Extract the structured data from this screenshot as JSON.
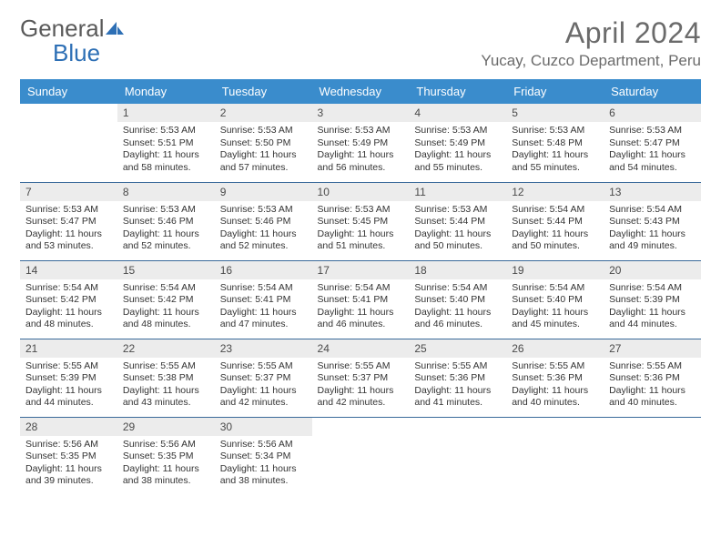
{
  "logo": {
    "main": "General",
    "accent": "Blue"
  },
  "title": "April 2024",
  "location": "Yucay, Cuzco Department, Peru",
  "colors": {
    "header_bg": "#3a8ccc",
    "header_fg": "#ffffff",
    "daynum_bg": "#ececec",
    "row_border": "#3a6a9a",
    "title_color": "#6b6b6b",
    "logo_gray": "#5a5a5a",
    "logo_blue": "#2d6fb5"
  },
  "weekdays": [
    "Sunday",
    "Monday",
    "Tuesday",
    "Wednesday",
    "Thursday",
    "Friday",
    "Saturday"
  ],
  "weeks": [
    [
      null,
      {
        "n": "1",
        "sr": "5:53 AM",
        "ss": "5:51 PM",
        "dl": "11 hours and 58 minutes."
      },
      {
        "n": "2",
        "sr": "5:53 AM",
        "ss": "5:50 PM",
        "dl": "11 hours and 57 minutes."
      },
      {
        "n": "3",
        "sr": "5:53 AM",
        "ss": "5:49 PM",
        "dl": "11 hours and 56 minutes."
      },
      {
        "n": "4",
        "sr": "5:53 AM",
        "ss": "5:49 PM",
        "dl": "11 hours and 55 minutes."
      },
      {
        "n": "5",
        "sr": "5:53 AM",
        "ss": "5:48 PM",
        "dl": "11 hours and 55 minutes."
      },
      {
        "n": "6",
        "sr": "5:53 AM",
        "ss": "5:47 PM",
        "dl": "11 hours and 54 minutes."
      }
    ],
    [
      {
        "n": "7",
        "sr": "5:53 AM",
        "ss": "5:47 PM",
        "dl": "11 hours and 53 minutes."
      },
      {
        "n": "8",
        "sr": "5:53 AM",
        "ss": "5:46 PM",
        "dl": "11 hours and 52 minutes."
      },
      {
        "n": "9",
        "sr": "5:53 AM",
        "ss": "5:46 PM",
        "dl": "11 hours and 52 minutes."
      },
      {
        "n": "10",
        "sr": "5:53 AM",
        "ss": "5:45 PM",
        "dl": "11 hours and 51 minutes."
      },
      {
        "n": "11",
        "sr": "5:53 AM",
        "ss": "5:44 PM",
        "dl": "11 hours and 50 minutes."
      },
      {
        "n": "12",
        "sr": "5:54 AM",
        "ss": "5:44 PM",
        "dl": "11 hours and 50 minutes."
      },
      {
        "n": "13",
        "sr": "5:54 AM",
        "ss": "5:43 PM",
        "dl": "11 hours and 49 minutes."
      }
    ],
    [
      {
        "n": "14",
        "sr": "5:54 AM",
        "ss": "5:42 PM",
        "dl": "11 hours and 48 minutes."
      },
      {
        "n": "15",
        "sr": "5:54 AM",
        "ss": "5:42 PM",
        "dl": "11 hours and 48 minutes."
      },
      {
        "n": "16",
        "sr": "5:54 AM",
        "ss": "5:41 PM",
        "dl": "11 hours and 47 minutes."
      },
      {
        "n": "17",
        "sr": "5:54 AM",
        "ss": "5:41 PM",
        "dl": "11 hours and 46 minutes."
      },
      {
        "n": "18",
        "sr": "5:54 AM",
        "ss": "5:40 PM",
        "dl": "11 hours and 46 minutes."
      },
      {
        "n": "19",
        "sr": "5:54 AM",
        "ss": "5:40 PM",
        "dl": "11 hours and 45 minutes."
      },
      {
        "n": "20",
        "sr": "5:54 AM",
        "ss": "5:39 PM",
        "dl": "11 hours and 44 minutes."
      }
    ],
    [
      {
        "n": "21",
        "sr": "5:55 AM",
        "ss": "5:39 PM",
        "dl": "11 hours and 44 minutes."
      },
      {
        "n": "22",
        "sr": "5:55 AM",
        "ss": "5:38 PM",
        "dl": "11 hours and 43 minutes."
      },
      {
        "n": "23",
        "sr": "5:55 AM",
        "ss": "5:37 PM",
        "dl": "11 hours and 42 minutes."
      },
      {
        "n": "24",
        "sr": "5:55 AM",
        "ss": "5:37 PM",
        "dl": "11 hours and 42 minutes."
      },
      {
        "n": "25",
        "sr": "5:55 AM",
        "ss": "5:36 PM",
        "dl": "11 hours and 41 minutes."
      },
      {
        "n": "26",
        "sr": "5:55 AM",
        "ss": "5:36 PM",
        "dl": "11 hours and 40 minutes."
      },
      {
        "n": "27",
        "sr": "5:55 AM",
        "ss": "5:36 PM",
        "dl": "11 hours and 40 minutes."
      }
    ],
    [
      {
        "n": "28",
        "sr": "5:56 AM",
        "ss": "5:35 PM",
        "dl": "11 hours and 39 minutes."
      },
      {
        "n": "29",
        "sr": "5:56 AM",
        "ss": "5:35 PM",
        "dl": "11 hours and 38 minutes."
      },
      {
        "n": "30",
        "sr": "5:56 AM",
        "ss": "5:34 PM",
        "dl": "11 hours and 38 minutes."
      },
      null,
      null,
      null,
      null
    ]
  ],
  "labels": {
    "sunrise": "Sunrise:",
    "sunset": "Sunset:",
    "daylight": "Daylight:"
  }
}
